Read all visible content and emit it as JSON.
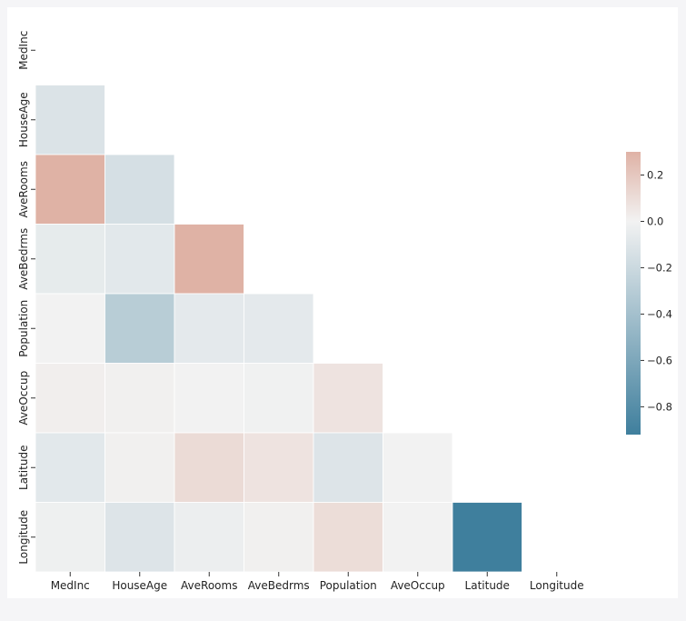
{
  "chart_data": {
    "type": "heatmap",
    "title": "",
    "variables": [
      "MedInc",
      "HouseAge",
      "AveRooms",
      "AveBedrms",
      "Population",
      "AveOccup",
      "Latitude",
      "Longitude"
    ],
    "mask": "upper triangle including diagonal",
    "cells": [
      {
        "row": "HouseAge",
        "col": "MedInc",
        "value": -0.12
      },
      {
        "row": "AveRooms",
        "col": "MedInc",
        "value": 0.33
      },
      {
        "row": "AveRooms",
        "col": "HouseAge",
        "value": -0.15
      },
      {
        "row": "AveBedrms",
        "col": "MedInc",
        "value": -0.06
      },
      {
        "row": "AveBedrms",
        "col": "HouseAge",
        "value": -0.08
      },
      {
        "row": "AveBedrms",
        "col": "AveRooms",
        "value": 0.85
      },
      {
        "row": "Population",
        "col": "MedInc",
        "value": 0.0
      },
      {
        "row": "Population",
        "col": "HouseAge",
        "value": -0.3
      },
      {
        "row": "Population",
        "col": "AveRooms",
        "value": -0.07
      },
      {
        "row": "Population",
        "col": "AveBedrms",
        "value": -0.07
      },
      {
        "row": "AveOccup",
        "col": "MedInc",
        "value": 0.02
      },
      {
        "row": "AveOccup",
        "col": "HouseAge",
        "value": 0.01
      },
      {
        "row": "AveOccup",
        "col": "AveRooms",
        "value": -0.0
      },
      {
        "row": "AveOccup",
        "col": "AveBedrms",
        "value": -0.01
      },
      {
        "row": "AveOccup",
        "col": "Population",
        "value": 0.07
      },
      {
        "row": "Latitude",
        "col": "MedInc",
        "value": -0.08
      },
      {
        "row": "Latitude",
        "col": "HouseAge",
        "value": 0.01
      },
      {
        "row": "Latitude",
        "col": "AveRooms",
        "value": 0.11
      },
      {
        "row": "Latitude",
        "col": "AveBedrms",
        "value": 0.07
      },
      {
        "row": "Latitude",
        "col": "Population",
        "value": -0.11
      },
      {
        "row": "Latitude",
        "col": "AveOccup",
        "value": 0.0
      },
      {
        "row": "Longitude",
        "col": "MedInc",
        "value": -0.02
      },
      {
        "row": "Longitude",
        "col": "HouseAge",
        "value": -0.11
      },
      {
        "row": "Longitude",
        "col": "AveRooms",
        "value": -0.03
      },
      {
        "row": "Longitude",
        "col": "AveBedrms",
        "value": 0.01
      },
      {
        "row": "Longitude",
        "col": "Population",
        "value": 0.1
      },
      {
        "row": "Longitude",
        "col": "AveOccup",
        "value": 0.0
      },
      {
        "row": "Longitude",
        "col": "Latitude",
        "value": -0.92
      }
    ],
    "colorbar": {
      "vmin": -0.92,
      "vmax": 0.3,
      "ticks": [
        0.2,
        0.0,
        -0.2,
        -0.4,
        -0.6,
        -0.8
      ],
      "tick_labels": [
        "0.2",
        "0.0",
        "−0.2",
        "−0.4",
        "−0.6",
        "−0.8"
      ]
    },
    "colors": {
      "negative": "#3f7f9d",
      "neutral": "#f2f2f2",
      "positive": "#dfb2a5"
    }
  }
}
